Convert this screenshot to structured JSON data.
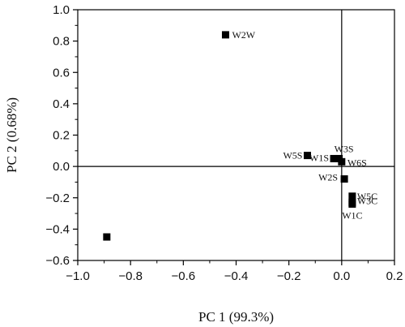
{
  "chart_data": {
    "type": "scatter",
    "title": "",
    "xlabel": "PC 1 (99.3%)",
    "ylabel": "PC 2 (0.68%)",
    "xlim": [
      -1.0,
      0.2
    ],
    "ylim": [
      -0.6,
      1.0
    ],
    "x_ticks": [
      "−1.0",
      "−0.8",
      "−0.6",
      "−0.4",
      "−0.2",
      "0.0",
      "0.2"
    ],
    "y_ticks": [
      "−0.6",
      "−0.4",
      "−0.2",
      "0.0",
      "0.2",
      "0.4",
      "0.6",
      "0.8",
      "1.0"
    ],
    "x_tick_values": [
      -1.0,
      -0.8,
      -0.6,
      -0.4,
      -0.2,
      0.0,
      0.2
    ],
    "y_tick_values": [
      -0.6,
      -0.4,
      -0.2,
      0.0,
      0.2,
      0.4,
      0.6,
      0.8,
      1.0
    ],
    "reference_lines": {
      "x": 0.0,
      "y": 0.0
    },
    "marker": "square",
    "marker_color": "#000000",
    "grid": false,
    "points": [
      {
        "label": "W2W",
        "x": -0.44,
        "y": 0.84
      },
      {
        "label": "W5S",
        "x": -0.13,
        "y": 0.07
      },
      {
        "label": "W1S",
        "x": -0.03,
        "y": 0.05
      },
      {
        "label": "W3S",
        "x": -0.01,
        "y": 0.05
      },
      {
        "label": "W6S",
        "x": 0.0,
        "y": 0.03
      },
      {
        "label": "W2S",
        "x": 0.01,
        "y": -0.08
      },
      {
        "label": "W5C",
        "x": 0.04,
        "y": -0.19
      },
      {
        "label": "W3C",
        "x": 0.04,
        "y": -0.23
      },
      {
        "label": "W1C",
        "x": 0.04,
        "y": -0.24
      },
      {
        "label": "",
        "x": -0.89,
        "y": -0.45
      }
    ]
  }
}
